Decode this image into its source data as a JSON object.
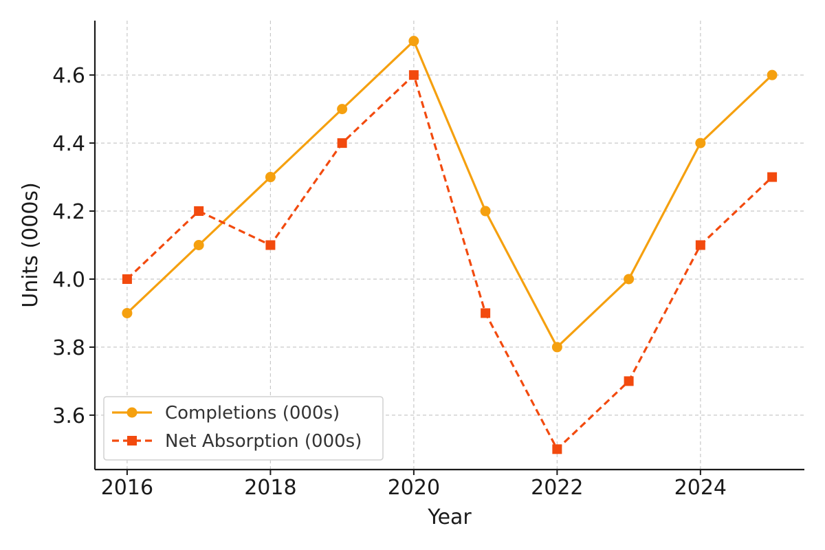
{
  "chart_data": {
    "type": "line",
    "title": "",
    "xlabel": "Year",
    "ylabel": "Units (000s)",
    "x": [
      2016,
      2017,
      2018,
      2019,
      2020,
      2021,
      2022,
      2023,
      2024,
      2025
    ],
    "xlim": [
      2015.55,
      2025.45
    ],
    "ylim": [
      3.44,
      4.76
    ],
    "xticks": [
      "2016",
      "2018",
      "2020",
      "2022",
      "2024"
    ],
    "yticks": [
      "3.6",
      "3.8",
      "4.0",
      "4.2",
      "4.4",
      "4.6"
    ],
    "grid": true,
    "legend_position": "lower-left",
    "series": [
      {
        "name": "Completions (000s)",
        "values": [
          3.9,
          4.1,
          4.3,
          4.5,
          4.7,
          4.2,
          3.8,
          4.0,
          4.4,
          4.6
        ],
        "color": "#f5a00f",
        "line_style": "solid",
        "marker": "circle"
      },
      {
        "name": "Net Absorption (000s)",
        "values": [
          4.0,
          4.2,
          4.1,
          4.4,
          4.6,
          3.9,
          3.5,
          3.7,
          4.1,
          4.3
        ],
        "color": "#f24a0e",
        "line_style": "dashed",
        "marker": "square"
      }
    ]
  }
}
